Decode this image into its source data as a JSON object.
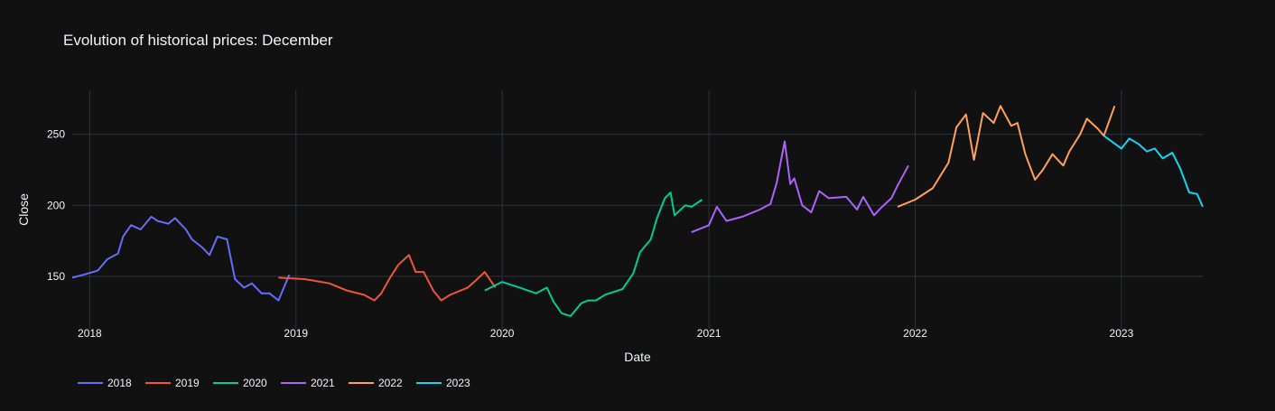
{
  "chart_data": {
    "type": "line",
    "title": "Evolution of historical prices: December",
    "xlabel": "Date",
    "ylabel": "Close",
    "xlim": [
      "2017-12-01",
      "2023-05-25"
    ],
    "ylim": [
      113,
      281
    ],
    "x_ticks": [
      {
        "label": "2018",
        "date": "2018-01-01"
      },
      {
        "label": "2019",
        "date": "2019-01-01"
      },
      {
        "label": "2020",
        "date": "2020-01-01"
      },
      {
        "label": "2021",
        "date": "2021-01-01"
      },
      {
        "label": "2022",
        "date": "2022-01-01"
      },
      {
        "label": "2023",
        "date": "2023-01-01"
      }
    ],
    "y_ticks": [
      150,
      200,
      250
    ],
    "grid": true,
    "legend_position": "bottom-left",
    "series": [
      {
        "name": "2018",
        "color": "#636efa",
        "x": [
          "2017-12-01",
          "2017-12-20",
          "2018-01-15",
          "2018-02-01",
          "2018-02-20",
          "2018-03-01",
          "2018-03-15",
          "2018-04-01",
          "2018-04-20",
          "2018-05-01",
          "2018-05-20",
          "2018-06-01",
          "2018-06-20",
          "2018-07-01",
          "2018-07-20",
          "2018-08-01",
          "2018-08-15",
          "2018-09-01",
          "2018-09-15",
          "2018-10-01",
          "2018-10-15",
          "2018-11-01",
          "2018-11-15",
          "2018-12-01",
          "2018-12-20"
        ],
        "y": [
          149,
          151,
          154,
          162,
          166,
          178,
          186,
          183,
          192,
          189,
          187,
          191,
          183,
          176,
          170,
          165,
          178,
          176,
          148,
          142,
          145,
          138,
          138,
          133,
          151
        ]
      },
      {
        "name": "2019",
        "color": "#ef553b",
        "x": [
          "2018-12-01",
          "2019-01-15",
          "2019-02-01",
          "2019-03-01",
          "2019-04-01",
          "2019-05-01",
          "2019-05-20",
          "2019-06-01",
          "2019-06-15",
          "2019-07-01",
          "2019-07-20",
          "2019-08-01",
          "2019-08-15",
          "2019-09-01",
          "2019-09-15",
          "2019-10-01",
          "2019-11-01",
          "2019-11-15",
          "2019-12-01",
          "2019-12-20"
        ],
        "y": [
          149,
          148,
          147,
          145,
          140,
          137,
          133,
          138,
          148,
          158,
          165,
          153,
          153,
          140,
          133,
          137,
          142,
          147,
          153,
          142
        ]
      },
      {
        "name": "2020",
        "color": "#00cc96",
        "x": [
          "2019-12-01",
          "2020-01-01",
          "2020-02-01",
          "2020-03-01",
          "2020-03-20",
          "2020-04-01",
          "2020-04-15",
          "2020-05-01",
          "2020-05-20",
          "2020-06-01",
          "2020-06-15",
          "2020-07-01",
          "2020-08-01",
          "2020-08-20",
          "2020-09-01",
          "2020-09-20",
          "2020-10-01",
          "2020-10-15",
          "2020-10-25",
          "2020-11-01",
          "2020-11-20",
          "2020-12-01",
          "2020-12-20"
        ],
        "y": [
          140,
          146,
          142,
          138,
          142,
          132,
          124,
          122,
          131,
          133,
          133,
          137,
          141,
          152,
          167,
          176,
          191,
          205,
          209,
          193,
          200,
          199,
          204
        ]
      },
      {
        "name": "2021",
        "color": "#ab63fa",
        "x": [
          "2020-12-01",
          "2021-01-01",
          "2021-01-15",
          "2021-02-01",
          "2021-03-01",
          "2021-04-01",
          "2021-04-20",
          "2021-05-01",
          "2021-05-15",
          "2021-05-25",
          "2021-06-01",
          "2021-06-15",
          "2021-07-01",
          "2021-07-15",
          "2021-08-01",
          "2021-09-01",
          "2021-09-20",
          "2021-10-01",
          "2021-10-20",
          "2021-11-01",
          "2021-11-20",
          "2021-12-01",
          "2021-12-20"
        ],
        "y": [
          181,
          186,
          199,
          189,
          192,
          197,
          201,
          216,
          245,
          215,
          219,
          200,
          195,
          210,
          205,
          206,
          197,
          206,
          193,
          198,
          205,
          214,
          228
        ]
      },
      {
        "name": "2022",
        "color": "#ffa15a",
        "x": [
          "2021-12-01",
          "2022-01-01",
          "2022-02-01",
          "2022-03-01",
          "2022-03-15",
          "2022-04-01",
          "2022-04-15",
          "2022-05-01",
          "2022-05-20",
          "2022-06-01",
          "2022-06-20",
          "2022-07-01",
          "2022-07-15",
          "2022-08-01",
          "2022-08-15",
          "2022-09-01",
          "2022-09-20",
          "2022-10-01",
          "2022-10-20",
          "2022-11-01",
          "2022-11-20",
          "2022-12-01",
          "2022-12-20"
        ],
        "y": [
          199,
          204,
          212,
          230,
          255,
          264,
          232,
          265,
          258,
          270,
          256,
          258,
          236,
          218,
          225,
          236,
          228,
          238,
          250,
          261,
          254,
          249,
          270
        ]
      },
      {
        "name": "2023",
        "color": "#19d3f3",
        "x": [
          "2022-12-01",
          "2023-01-01",
          "2023-01-15",
          "2023-02-01",
          "2023-02-15",
          "2023-03-01",
          "2023-03-15",
          "2023-04-01",
          "2023-04-15",
          "2023-05-01",
          "2023-05-15",
          "2023-05-25"
        ],
        "y": [
          249,
          240,
          247,
          243,
          238,
          240,
          233,
          237,
          226,
          209,
          208,
          199
        ]
      }
    ]
  }
}
